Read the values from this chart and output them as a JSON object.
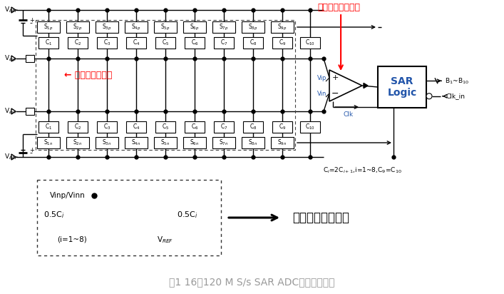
{
  "fig_width": 7.07,
  "fig_height": 4.12,
  "dpi": 100,
  "bg_color": "#ffffff",
  "title_text": "图1 16位120 M S/s SAR ADC总体结构原理",
  "title_color": "#999999",
  "title_fontsize": 10,
  "red_label1": "高速低噪声比较器",
  "red_label2": "← 高线性采样开关",
  "black_label1": "权重电容采样状态",
  "line_color": "#000000",
  "red_color": "#ff0000",
  "blue_color": "#2255aa"
}
